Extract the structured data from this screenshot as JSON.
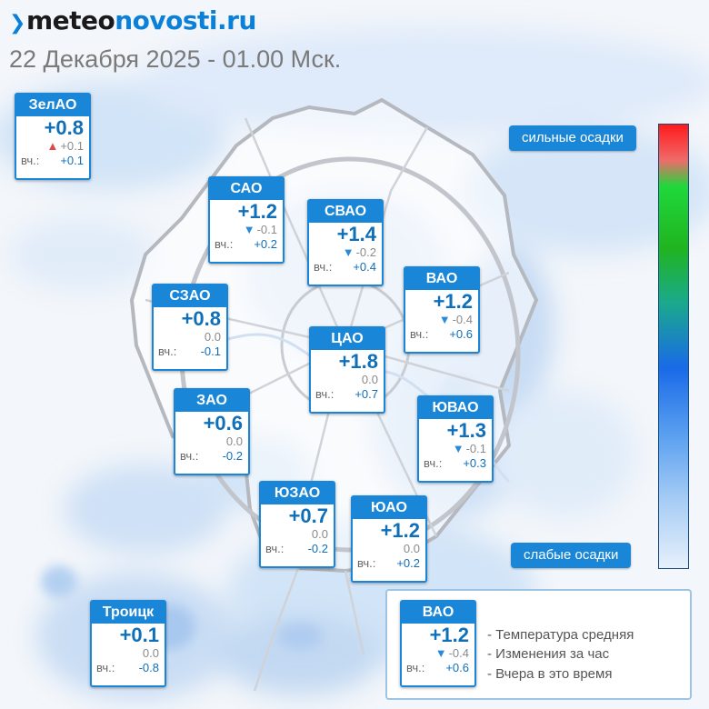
{
  "header": {
    "logo_part1": "meteo",
    "logo_part2": "novosti.ru",
    "datetime": "22 Декабря 2025 - 01.00 Мск."
  },
  "colors": {
    "accent": "#1a86d8",
    "temp_text": "#0f6fb8",
    "arrow_down": "#2a8ad8",
    "arrow_up": "#e04848"
  },
  "yesterday_label": "вч.:",
  "districts": [
    {
      "id": "zelao",
      "name": "ЗелАО",
      "temp": "+0.8",
      "change": "+0.1",
      "trend": "up",
      "yesterday": "+0.1"
    },
    {
      "id": "sao",
      "name": "САО",
      "temp": "+1.2",
      "change": "-0.1",
      "trend": "down",
      "yesterday": "+0.2"
    },
    {
      "id": "svao",
      "name": "СВАО",
      "temp": "+1.4",
      "change": "-0.2",
      "trend": "down",
      "yesterday": "+0.4"
    },
    {
      "id": "vao",
      "name": "ВАО",
      "temp": "+1.2",
      "change": "-0.4",
      "trend": "down",
      "yesterday": "+0.6"
    },
    {
      "id": "szao",
      "name": "СЗАО",
      "temp": "+0.8",
      "change": "0.0",
      "trend": "none",
      "yesterday": "-0.1"
    },
    {
      "id": "cao",
      "name": "ЦАО",
      "temp": "+1.8",
      "change": "0.0",
      "trend": "none",
      "yesterday": "+0.7"
    },
    {
      "id": "zao",
      "name": "ЗАО",
      "temp": "+0.6",
      "change": "0.0",
      "trend": "none",
      "yesterday": "-0.2"
    },
    {
      "id": "yuvao",
      "name": "ЮВАО",
      "temp": "+1.3",
      "change": "-0.1",
      "trend": "down",
      "yesterday": "+0.3"
    },
    {
      "id": "yuzao",
      "name": "ЮЗАО",
      "temp": "+0.7",
      "change": "0.0",
      "trend": "none",
      "yesterday": "-0.2"
    },
    {
      "id": "yuao",
      "name": "ЮАО",
      "temp": "+1.2",
      "change": "0.0",
      "trend": "none",
      "yesterday": "+0.2"
    },
    {
      "id": "troitsk",
      "name": "Троицк",
      "temp": "+0.1",
      "change": "0.0",
      "trend": "none",
      "yesterday": "-0.8"
    }
  ],
  "scale": {
    "top_label": "сильные осадки",
    "bottom_label": "слабые осадки"
  },
  "legend": {
    "example": {
      "name": "ВАО",
      "temp": "+1.2",
      "change": "-0.4",
      "trend": "down",
      "yesterday": "+0.6"
    },
    "line1": "- Температура средняя",
    "line2": "- Изменения за час",
    "line3": "- Вчера в это время"
  }
}
